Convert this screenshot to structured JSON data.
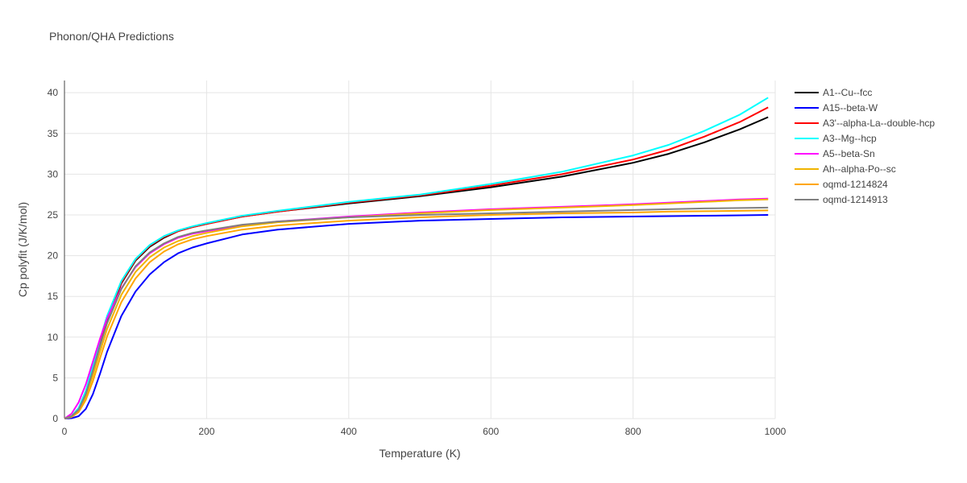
{
  "chart_data": {
    "type": "line",
    "title": "Phonon/QHA Predictions",
    "xlabel": "Temperature (K)",
    "ylabel": "Cp polyfit (J/K/mol)",
    "xlim": [
      0,
      1000
    ],
    "ylim": [
      0,
      41.5
    ],
    "xticks": [
      0,
      200,
      400,
      600,
      800,
      1000
    ],
    "yticks": [
      0,
      5,
      10,
      15,
      20,
      25,
      30,
      35,
      40
    ],
    "grid": true,
    "legend_position": "top-right",
    "x": [
      0,
      10,
      20,
      30,
      40,
      50,
      60,
      80,
      100,
      120,
      140,
      160,
      180,
      200,
      250,
      300,
      400,
      500,
      600,
      700,
      800,
      850,
      900,
      950,
      990
    ],
    "series": [
      {
        "name": "A1--Cu--fcc",
        "color": "#000000",
        "values": [
          0,
          0.3,
          1.2,
          3.2,
          6.2,
          9.3,
          12.2,
          16.6,
          19.4,
          21.1,
          22.2,
          23.0,
          23.5,
          23.9,
          24.8,
          25.4,
          26.4,
          27.3,
          28.4,
          29.7,
          31.4,
          32.5,
          33.9,
          35.5,
          37.0
        ]
      },
      {
        "name": "A15--beta-W",
        "color": "#0000ff",
        "values": [
          0,
          0.05,
          0.3,
          1.2,
          3.0,
          5.5,
          8.2,
          12.6,
          15.6,
          17.7,
          19.2,
          20.3,
          21.0,
          21.5,
          22.6,
          23.2,
          23.9,
          24.3,
          24.5,
          24.7,
          24.8,
          24.85,
          24.9,
          24.95,
          25.0
        ]
      },
      {
        "name": "A3'--alpha-La--double-hcp",
        "color": "#ff0000",
        "values": [
          0,
          0.3,
          1.2,
          3.3,
          6.3,
          9.5,
          12.4,
          16.7,
          19.5,
          21.2,
          22.3,
          23.0,
          23.5,
          23.9,
          24.8,
          25.4,
          26.5,
          27.4,
          28.6,
          30.0,
          31.8,
          33.0,
          34.6,
          36.4,
          38.2
        ]
      },
      {
        "name": "A3--Mg--hcp",
        "color": "#00ffff",
        "values": [
          0,
          0.3,
          1.3,
          3.4,
          6.5,
          9.7,
          12.6,
          16.9,
          19.6,
          21.3,
          22.4,
          23.1,
          23.6,
          24.0,
          24.9,
          25.5,
          26.6,
          27.5,
          28.8,
          30.3,
          32.3,
          33.6,
          35.3,
          37.3,
          39.4
        ]
      },
      {
        "name": "A5--beta-Sn",
        "color": "#ff00ff",
        "values": [
          0,
          0.6,
          2.0,
          4.2,
          7.0,
          9.8,
          12.3,
          16.0,
          18.6,
          20.3,
          21.4,
          22.2,
          22.7,
          23.0,
          23.7,
          24.2,
          24.8,
          25.3,
          25.7,
          26.0,
          26.3,
          26.5,
          26.7,
          26.9,
          27.0
        ]
      },
      {
        "name": "Ah--alpha-Po--sc",
        "color": "#f0b400",
        "values": [
          0,
          0.3,
          1.0,
          2.7,
          5.3,
          8.2,
          11.0,
          15.2,
          18.0,
          19.8,
          21.0,
          21.8,
          22.4,
          22.8,
          23.6,
          24.1,
          24.7,
          25.2,
          25.6,
          25.9,
          26.2,
          26.4,
          26.6,
          26.8,
          26.9
        ]
      },
      {
        "name": "oqmd-1214824",
        "color": "#ffa500",
        "values": [
          0,
          0.2,
          0.8,
          2.3,
          4.6,
          7.4,
          10.1,
          14.3,
          17.2,
          19.2,
          20.5,
          21.4,
          22.0,
          22.4,
          23.2,
          23.7,
          24.3,
          24.7,
          25.0,
          25.2,
          25.3,
          25.4,
          25.45,
          25.5,
          25.55
        ]
      },
      {
        "name": "oqmd-1214913",
        "color": "#808080",
        "values": [
          0,
          0.3,
          1.1,
          3.0,
          5.9,
          8.9,
          11.7,
          15.9,
          18.7,
          20.4,
          21.5,
          22.3,
          22.8,
          23.1,
          23.8,
          24.2,
          24.7,
          25.0,
          25.2,
          25.4,
          25.6,
          25.7,
          25.8,
          25.85,
          25.9
        ]
      }
    ]
  }
}
